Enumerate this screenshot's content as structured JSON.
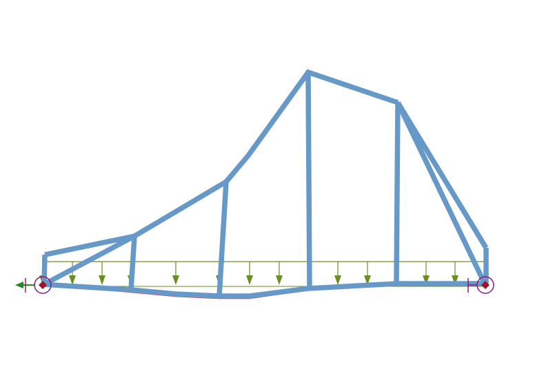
{
  "colors": {
    "background": "#ffffff",
    "member": "#6699c8",
    "deformed": "#d8283c",
    "load": "#6b8e23",
    "support": "#8b1a7a",
    "support_fill": "#a0122a",
    "force_arrow": "#1e8c1e"
  },
  "icons": {
    "left_support": "pinned-support-icon",
    "right_support": "roller-support-icon",
    "load_arrow": "arrow-down-icon",
    "reaction_arrow": "arrow-left-icon"
  },
  "structure": {
    "type": "truss",
    "member_count": 18,
    "load_arrow_count": 12,
    "support_count": 2
  }
}
